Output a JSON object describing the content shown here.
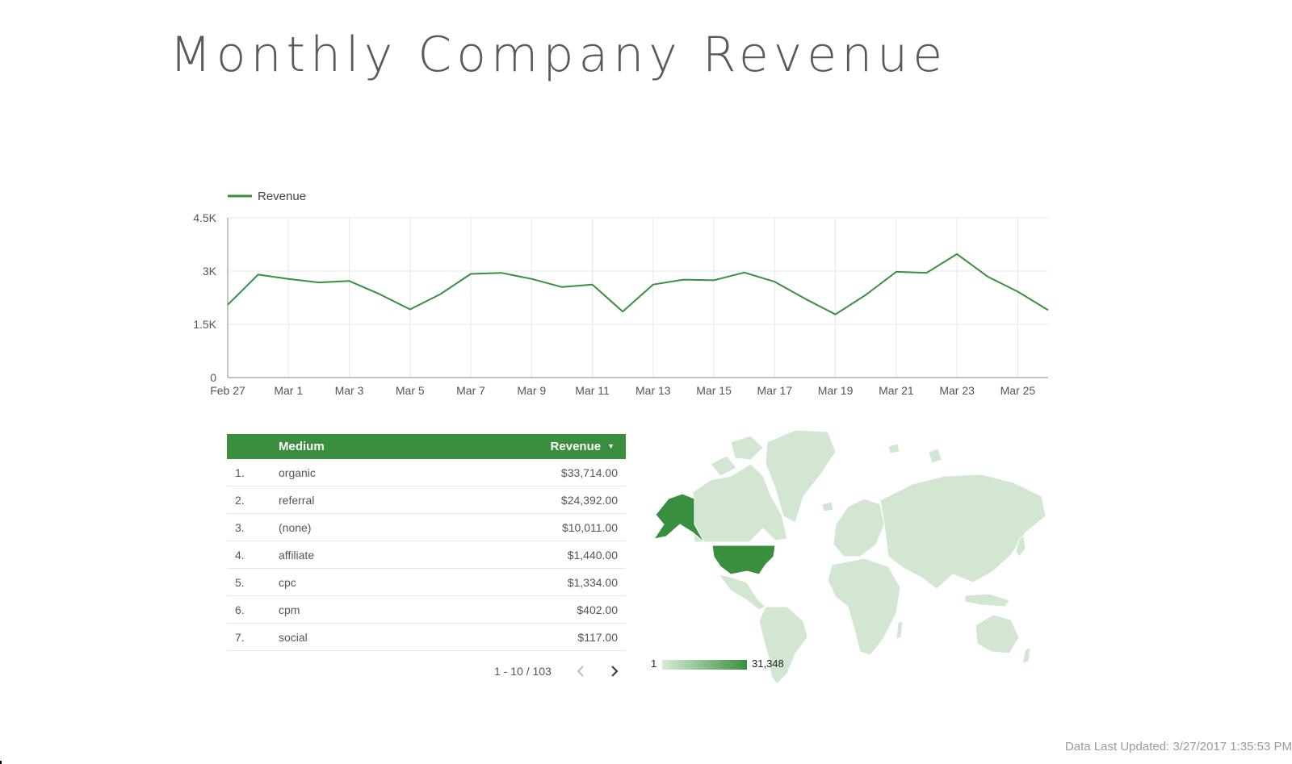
{
  "header": {
    "title": "Monthly Company Revenue"
  },
  "chart_data": [
    {
      "type": "line",
      "title": "",
      "xlabel": "",
      "ylabel": "",
      "legend": "top-left",
      "grid": true,
      "x": [
        "Feb 27",
        "Feb 28",
        "Mar 1",
        "Mar 2",
        "Mar 3",
        "Mar 4",
        "Mar 5",
        "Mar 6",
        "Mar 7",
        "Mar 8",
        "Mar 9",
        "Mar 10",
        "Mar 11",
        "Mar 12",
        "Mar 13",
        "Mar 14",
        "Mar 15",
        "Mar 16",
        "Mar 17",
        "Mar 18",
        "Mar 19",
        "Mar 20",
        "Mar 21",
        "Mar 22",
        "Mar 23",
        "Mar 24",
        "Mar 25",
        "Mar 26"
      ],
      "x_tick_labels": [
        "Feb 27",
        "Mar 1",
        "Mar 3",
        "Mar 5",
        "Mar 7",
        "Mar 9",
        "Mar 11",
        "Mar 13",
        "Mar 15",
        "Mar 17",
        "Mar 19",
        "Mar 21",
        "Mar 23",
        "Mar 25"
      ],
      "y_ticks": [
        0,
        1500,
        3000,
        4500
      ],
      "y_tick_labels": [
        "0",
        "1.5K",
        "3K",
        "4.5K"
      ],
      "ylim": [
        0,
        4500
      ],
      "series": [
        {
          "name": "Revenue",
          "color": "#3a8f3f",
          "values": [
            2050,
            2900,
            2780,
            2680,
            2720,
            2350,
            1920,
            2350,
            2920,
            2950,
            2780,
            2550,
            2620,
            1860,
            2620,
            2760,
            2740,
            2960,
            2700,
            2220,
            1780,
            2330,
            2980,
            2950,
            3480,
            2850,
            2420,
            1900
          ]
        }
      ]
    },
    {
      "type": "table",
      "columns": [
        "Medium",
        "Revenue"
      ],
      "sort_column": "Revenue",
      "sort_direction": "descending",
      "header_color": "#3a8f3f",
      "rows": [
        {
          "rank": "1.",
          "medium": "organic",
          "revenue": "$33,714.00"
        },
        {
          "rank": "2.",
          "medium": "referral",
          "revenue": "$24,392.00"
        },
        {
          "rank": "3.",
          "medium": "(none)",
          "revenue": "$10,011.00"
        },
        {
          "rank": "4.",
          "medium": "affiliate",
          "revenue": "$1,440.00"
        },
        {
          "rank": "5.",
          "medium": "cpc",
          "revenue": "$1,334.00"
        },
        {
          "rank": "6.",
          "medium": "cpm",
          "revenue": "$402.00"
        },
        {
          "rank": "7.",
          "medium": "social",
          "revenue": "$117.00"
        }
      ],
      "pagination": "1 - 10 / 103"
    },
    {
      "type": "map",
      "region": "world",
      "legend": "bottom-left",
      "color_scale": {
        "min": 1,
        "max": 31348,
        "min_label": "1",
        "max_label": "31,348",
        "min_color": "#d8ead8",
        "max_color": "#3a8f3f"
      },
      "highlighted": [
        {
          "region": "United States",
          "level": "max"
        }
      ],
      "base_color": "#d2e6d2"
    }
  ],
  "footer": {
    "updated": "Data Last Updated: 3/27/2017 1:35:53 PM"
  }
}
